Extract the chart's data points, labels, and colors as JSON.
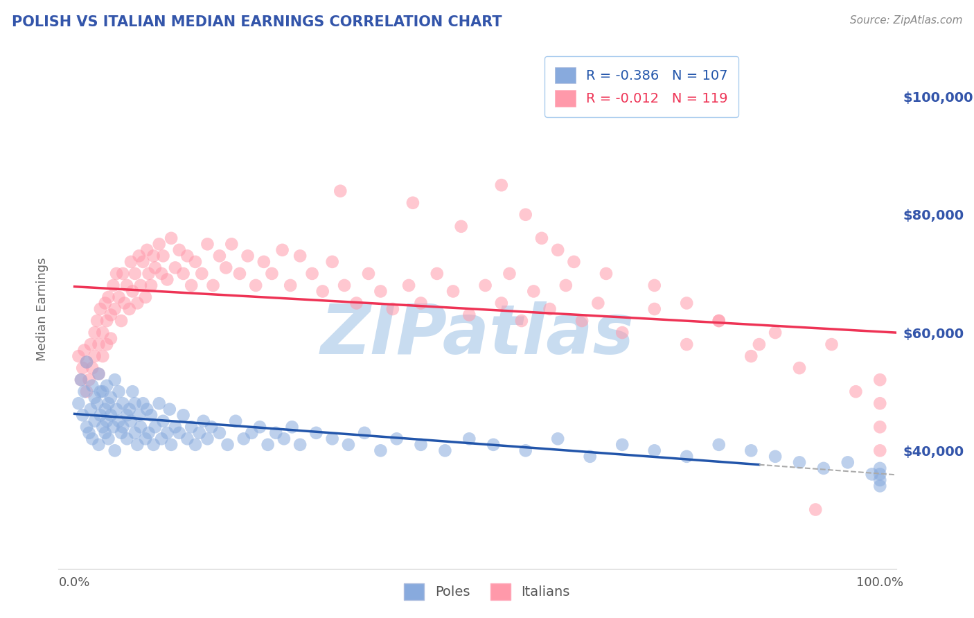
{
  "title": "POLISH VS ITALIAN MEDIAN EARNINGS CORRELATION CHART",
  "source": "Source: ZipAtlas.com",
  "ylabel": "Median Earnings",
  "xlim": [
    -0.02,
    1.02
  ],
  "ylim": [
    20000,
    108000
  ],
  "ytick_values": [
    40000,
    60000,
    80000,
    100000
  ],
  "ytick_labels": [
    "$40,000",
    "$60,000",
    "$80,000",
    "$100,000"
  ],
  "poles_R": -0.386,
  "poles_N": 107,
  "italians_R": -0.012,
  "italians_N": 119,
  "blue_scatter_color": "#88AADD",
  "pink_scatter_color": "#FF99AA",
  "blue_line_color": "#2255AA",
  "pink_line_color": "#EE3355",
  "dashed_line_color": "#AAAAAA",
  "title_color": "#3355AA",
  "source_color": "#888888",
  "grid_color": "#CCCCCC",
  "bg_color": "#FFFFFF",
  "watermark": "ZIPatlas",
  "watermark_color": "#C8DCF0",
  "legend_edge_color": "#AACCEE",
  "legend_bg": "#FFFFFF",
  "poles_x": [
    0.005,
    0.008,
    0.01,
    0.012,
    0.015,
    0.015,
    0.018,
    0.02,
    0.022,
    0.022,
    0.025,
    0.025,
    0.028,
    0.03,
    0.03,
    0.032,
    0.032,
    0.035,
    0.035,
    0.038,
    0.038,
    0.04,
    0.04,
    0.042,
    0.042,
    0.045,
    0.045,
    0.048,
    0.05,
    0.05,
    0.052,
    0.055,
    0.055,
    0.058,
    0.06,
    0.06,
    0.065,
    0.065,
    0.068,
    0.07,
    0.072,
    0.075,
    0.075,
    0.078,
    0.08,
    0.082,
    0.085,
    0.088,
    0.09,
    0.092,
    0.095,
    0.098,
    0.1,
    0.105,
    0.108,
    0.11,
    0.115,
    0.118,
    0.12,
    0.125,
    0.13,
    0.135,
    0.14,
    0.145,
    0.15,
    0.155,
    0.16,
    0.165,
    0.17,
    0.18,
    0.19,
    0.2,
    0.21,
    0.22,
    0.23,
    0.24,
    0.25,
    0.26,
    0.27,
    0.28,
    0.3,
    0.32,
    0.34,
    0.36,
    0.38,
    0.4,
    0.43,
    0.46,
    0.49,
    0.52,
    0.56,
    0.6,
    0.64,
    0.68,
    0.72,
    0.76,
    0.8,
    0.84,
    0.87,
    0.9,
    0.93,
    0.96,
    0.99,
    1.0,
    1.0,
    1.0,
    1.0
  ],
  "poles_y": [
    48000,
    52000,
    46000,
    50000,
    44000,
    55000,
    43000,
    47000,
    51000,
    42000,
    49000,
    45000,
    48000,
    53000,
    41000,
    50000,
    46000,
    44000,
    50000,
    47000,
    43000,
    51000,
    45000,
    48000,
    42000,
    49000,
    46000,
    44000,
    52000,
    40000,
    47000,
    45000,
    50000,
    43000,
    48000,
    44000,
    46000,
    42000,
    47000,
    45000,
    50000,
    43000,
    48000,
    41000,
    46000,
    44000,
    48000,
    42000,
    47000,
    43000,
    46000,
    41000,
    44000,
    48000,
    42000,
    45000,
    43000,
    47000,
    41000,
    44000,
    43000,
    46000,
    42000,
    44000,
    41000,
    43000,
    45000,
    42000,
    44000,
    43000,
    41000,
    45000,
    42000,
    43000,
    44000,
    41000,
    43000,
    42000,
    44000,
    41000,
    43000,
    42000,
    41000,
    43000,
    40000,
    42000,
    41000,
    40000,
    42000,
    41000,
    40000,
    42000,
    39000,
    41000,
    40000,
    39000,
    41000,
    40000,
    39000,
    38000,
    37000,
    38000,
    36000,
    35000,
    37000,
    36000,
    34000
  ],
  "italians_x": [
    0.005,
    0.008,
    0.01,
    0.012,
    0.015,
    0.015,
    0.018,
    0.02,
    0.022,
    0.025,
    0.025,
    0.028,
    0.03,
    0.03,
    0.032,
    0.035,
    0.035,
    0.038,
    0.04,
    0.04,
    0.042,
    0.045,
    0.045,
    0.048,
    0.05,
    0.052,
    0.055,
    0.058,
    0.06,
    0.062,
    0.065,
    0.068,
    0.07,
    0.072,
    0.075,
    0.078,
    0.08,
    0.082,
    0.085,
    0.088,
    0.09,
    0.092,
    0.095,
    0.098,
    0.1,
    0.105,
    0.108,
    0.11,
    0.115,
    0.12,
    0.125,
    0.13,
    0.135,
    0.14,
    0.145,
    0.15,
    0.158,
    0.165,
    0.172,
    0.18,
    0.188,
    0.195,
    0.205,
    0.215,
    0.225,
    0.235,
    0.245,
    0.258,
    0.268,
    0.28,
    0.295,
    0.308,
    0.32,
    0.335,
    0.35,
    0.365,
    0.38,
    0.395,
    0.415,
    0.43,
    0.45,
    0.47,
    0.49,
    0.51,
    0.53,
    0.54,
    0.555,
    0.57,
    0.59,
    0.61,
    0.63,
    0.65,
    0.68,
    0.72,
    0.76,
    0.8,
    0.84,
    0.87,
    0.9,
    0.94,
    0.97,
    1.0,
    1.0,
    1.0,
    1.0,
    0.33,
    0.42,
    0.48,
    0.53,
    0.56,
    0.58,
    0.6,
    0.62,
    0.66,
    0.72,
    0.76,
    0.8,
    0.85,
    0.92
  ],
  "italians_y": [
    56000,
    52000,
    54000,
    57000,
    50000,
    55000,
    52000,
    58000,
    54000,
    60000,
    56000,
    62000,
    58000,
    53000,
    64000,
    60000,
    56000,
    65000,
    62000,
    58000,
    66000,
    63000,
    59000,
    68000,
    64000,
    70000,
    66000,
    62000,
    70000,
    65000,
    68000,
    64000,
    72000,
    67000,
    70000,
    65000,
    73000,
    68000,
    72000,
    66000,
    74000,
    70000,
    68000,
    73000,
    71000,
    75000,
    70000,
    73000,
    69000,
    76000,
    71000,
    74000,
    70000,
    73000,
    68000,
    72000,
    70000,
    75000,
    68000,
    73000,
    71000,
    75000,
    70000,
    73000,
    68000,
    72000,
    70000,
    74000,
    68000,
    73000,
    70000,
    67000,
    72000,
    68000,
    65000,
    70000,
    67000,
    64000,
    68000,
    65000,
    70000,
    67000,
    63000,
    68000,
    65000,
    70000,
    62000,
    67000,
    64000,
    68000,
    62000,
    65000,
    60000,
    64000,
    58000,
    62000,
    56000,
    60000,
    54000,
    58000,
    50000,
    52000,
    48000,
    44000,
    40000,
    84000,
    82000,
    78000,
    85000,
    80000,
    76000,
    74000,
    72000,
    70000,
    68000,
    65000,
    62000,
    58000,
    30000
  ]
}
